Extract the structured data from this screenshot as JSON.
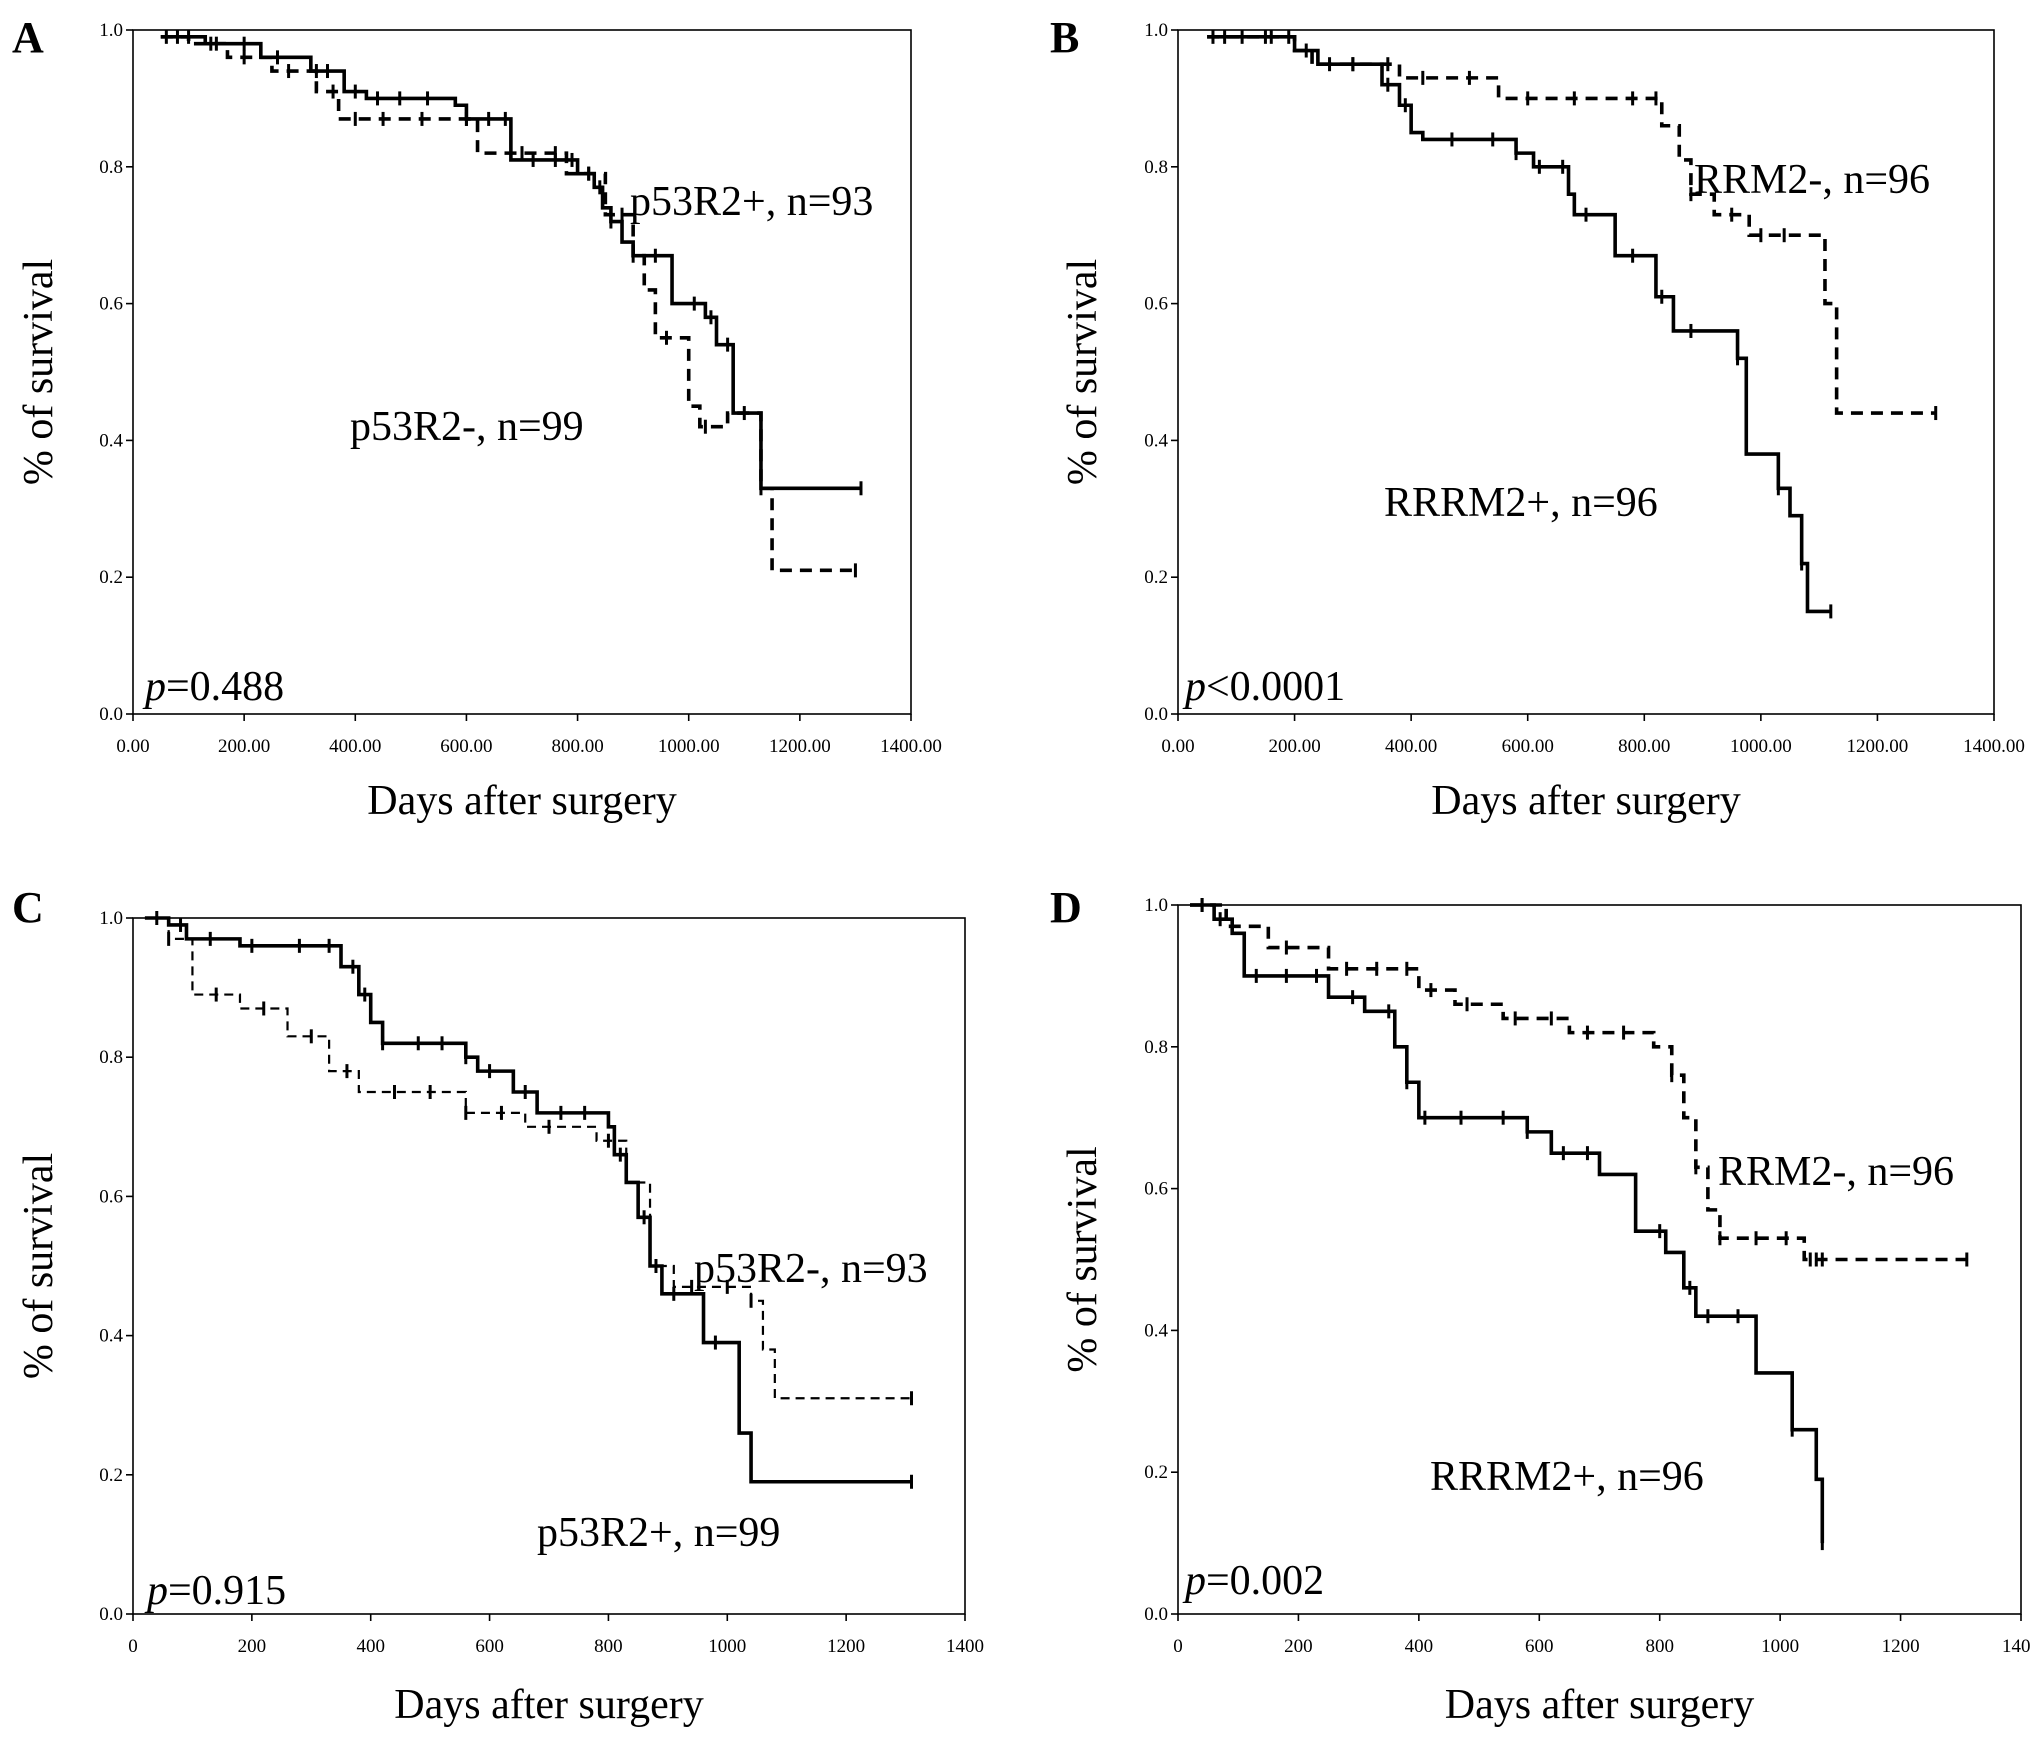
{
  "chart_data": [
    {
      "type": "line",
      "panel": "A",
      "xlabel": "Days after surgery",
      "ylabel": "% of survival",
      "xlim": [
        0,
        1400
      ],
      "ylim": [
        0,
        1.0
      ],
      "x_ticks": [
        0,
        200,
        400,
        600,
        800,
        1000,
        1200,
        1400
      ],
      "x_tick_labels": [
        "0.00",
        "200.00",
        "400.00",
        "600.00",
        "800.00",
        "1000.00",
        "1200.00",
        "1400.00"
      ],
      "y_ticks": [
        0,
        0.2,
        0.4,
        0.6,
        0.8,
        1.0
      ],
      "y_tick_labels": [
        "0.0",
        "0.2",
        "0.4",
        "0.6",
        "0.8",
        "1.0"
      ],
      "pvalue_label": "p",
      "pvalue_text": "=0.488",
      "annotations": [
        "p53R2+, n=93",
        "p53R2-, n=99"
      ],
      "series": [
        {
          "label": "p53R2+, n=93",
          "style": "solid",
          "steps": [
            [
              50,
              0.99
            ],
            [
              130,
              0.98
            ],
            [
              230,
              0.96
            ],
            [
              320,
              0.94
            ],
            [
              380,
              0.91
            ],
            [
              420,
              0.9
            ],
            [
              580,
              0.89
            ],
            [
              600,
              0.87
            ],
            [
              680,
              0.81
            ],
            [
              800,
              0.79
            ],
            [
              830,
              0.77
            ],
            [
              845,
              0.74
            ],
            [
              860,
              0.72
            ],
            [
              880,
              0.69
            ],
            [
              900,
              0.67
            ],
            [
              970,
              0.6
            ],
            [
              1030,
              0.58
            ],
            [
              1050,
              0.54
            ],
            [
              1080,
              0.44
            ],
            [
              1130,
              0.33
            ],
            [
              1310,
              0.33
            ]
          ],
          "censor_x": [
            60,
            100,
            150,
            200,
            260,
            330,
            350,
            400,
            440,
            480,
            530,
            600,
            640,
            670,
            720,
            760,
            790,
            820,
            840,
            860,
            900,
            940,
            1010,
            1040,
            1070,
            1130,
            1310
          ]
        },
        {
          "label": "p53R2-, n=99",
          "style": "dotted",
          "steps": [
            [
              50,
              0.99
            ],
            [
              100,
              0.98
            ],
            [
              170,
              0.96
            ],
            [
              250,
              0.94
            ],
            [
              330,
              0.91
            ],
            [
              370,
              0.87
            ],
            [
              620,
              0.82
            ],
            [
              780,
              0.79
            ],
            [
              850,
              0.73
            ],
            [
              900,
              0.67
            ],
            [
              920,
              0.62
            ],
            [
              940,
              0.55
            ],
            [
              1000,
              0.45
            ],
            [
              1020,
              0.42
            ],
            [
              1070,
              0.44
            ],
            [
              1130,
              0.33
            ],
            [
              1150,
              0.21
            ],
            [
              1300,
              0.21
            ]
          ],
          "censor_x": [
            80,
            140,
            200,
            280,
            360,
            400,
            450,
            520,
            600,
            700,
            760,
            820,
            880,
            960,
            1030,
            1100,
            1300
          ]
        }
      ]
    },
    {
      "type": "line",
      "panel": "B",
      "xlabel": "Days after surgery",
      "ylabel": "% of survival",
      "xlim": [
        0,
        1400
      ],
      "ylim": [
        0,
        1.0
      ],
      "x_ticks": [
        0,
        200,
        400,
        600,
        800,
        1000,
        1200,
        1400
      ],
      "x_tick_labels": [
        "0.00",
        "200.00",
        "400.00",
        "600.00",
        "800.00",
        "1000.00",
        "1200.00",
        "1400.00"
      ],
      "y_ticks": [
        0,
        0.2,
        0.4,
        0.6,
        0.8,
        1.0
      ],
      "y_tick_labels": [
        "0.0",
        "0.2",
        "0.4",
        "0.6",
        "0.8",
        "1.0"
      ],
      "pvalue_label": "p",
      "pvalue_text": "<0.0001",
      "annotations": [
        "RRM2-, n=96",
        "RRRM2+, n=96"
      ],
      "series": [
        {
          "label": "RRRM2+, n=96",
          "style": "solid",
          "steps": [
            [
              50,
              0.99
            ],
            [
              200,
              0.97
            ],
            [
              240,
              0.95
            ],
            [
              350,
              0.92
            ],
            [
              380,
              0.89
            ],
            [
              400,
              0.85
            ],
            [
              420,
              0.84
            ],
            [
              580,
              0.82
            ],
            [
              610,
              0.8
            ],
            [
              670,
              0.76
            ],
            [
              680,
              0.73
            ],
            [
              750,
              0.67
            ],
            [
              820,
              0.61
            ],
            [
              850,
              0.56
            ],
            [
              960,
              0.52
            ],
            [
              975,
              0.38
            ],
            [
              1030,
              0.33
            ],
            [
              1050,
              0.29
            ],
            [
              1070,
              0.22
            ],
            [
              1080,
              0.15
            ],
            [
              1120,
              0.15
            ]
          ],
          "censor_x": [
            60,
            110,
            150,
            190,
            260,
            300,
            360,
            390,
            470,
            540,
            580,
            620,
            660,
            700,
            780,
            830,
            880,
            960,
            1030,
            1070,
            1120
          ]
        },
        {
          "label": "RRM2-, n=96",
          "style": "dashed",
          "steps": [
            [
              50,
              0.99
            ],
            [
              200,
              0.97
            ],
            [
              230,
              0.95
            ],
            [
              380,
              0.93
            ],
            [
              550,
              0.9
            ],
            [
              830,
              0.86
            ],
            [
              860,
              0.81
            ],
            [
              880,
              0.76
            ],
            [
              920,
              0.73
            ],
            [
              980,
              0.7
            ],
            [
              1110,
              0.6
            ],
            [
              1130,
              0.44
            ],
            [
              1300,
              0.44
            ]
          ],
          "censor_x": [
            80,
            160,
            220,
            300,
            360,
            420,
            500,
            600,
            680,
            780,
            820,
            880,
            950,
            1000,
            1040,
            1300
          ]
        }
      ]
    },
    {
      "type": "line",
      "panel": "C",
      "xlabel": "Days after surgery",
      "ylabel": "% of survival",
      "xlim": [
        0,
        1400
      ],
      "ylim": [
        0,
        1.0
      ],
      "x_ticks": [
        0,
        200,
        400,
        600,
        800,
        1000,
        1200,
        1400
      ],
      "x_tick_labels": [
        "0",
        "200",
        "400",
        "600",
        "800",
        "1000",
        "1200",
        "1400"
      ],
      "y_ticks": [
        0,
        0.2,
        0.4,
        0.6,
        0.8,
        1.0
      ],
      "y_tick_labels": [
        "0.0",
        "0.2",
        "0.4",
        "0.6",
        "0.8",
        "1.0"
      ],
      "pvalue_label": "p",
      "pvalue_text": "=0.915",
      "annotations": [
        "p53R2-, n=93",
        "p53R2+, n=99"
      ],
      "series": [
        {
          "label": "p53R2+, n=99",
          "style": "solid",
          "steps": [
            [
              20,
              1.0
            ],
            [
              60,
              0.99
            ],
            [
              90,
              0.97
            ],
            [
              180,
              0.96
            ],
            [
              350,
              0.93
            ],
            [
              380,
              0.89
            ],
            [
              400,
              0.85
            ],
            [
              420,
              0.82
            ],
            [
              560,
              0.8
            ],
            [
              580,
              0.78
            ],
            [
              640,
              0.75
            ],
            [
              680,
              0.72
            ],
            [
              800,
              0.7
            ],
            [
              810,
              0.66
            ],
            [
              830,
              0.62
            ],
            [
              850,
              0.57
            ],
            [
              870,
              0.5
            ],
            [
              890,
              0.46
            ],
            [
              960,
              0.39
            ],
            [
              1020,
              0.26
            ],
            [
              1040,
              0.19
            ],
            [
              1310,
              0.19
            ]
          ],
          "censor_x": [
            40,
            80,
            130,
            200,
            280,
            330,
            370,
            390,
            420,
            480,
            520,
            560,
            600,
            660,
            720,
            760,
            820,
            860,
            910,
            980,
            1310
          ]
        },
        {
          "label": "p53R2-, n=93",
          "style": "dashed-thin",
          "steps": [
            [
              30,
              1.0
            ],
            [
              60,
              0.97
            ],
            [
              100,
              0.89
            ],
            [
              180,
              0.87
            ],
            [
              260,
              0.83
            ],
            [
              330,
              0.78
            ],
            [
              380,
              0.75
            ],
            [
              560,
              0.72
            ],
            [
              660,
              0.7
            ],
            [
              780,
              0.68
            ],
            [
              830,
              0.62
            ],
            [
              870,
              0.5
            ],
            [
              910,
              0.47
            ],
            [
              1040,
              0.45
            ],
            [
              1060,
              0.38
            ],
            [
              1080,
              0.31
            ],
            [
              1310,
              0.31
            ]
          ],
          "censor_x": [
            60,
            140,
            220,
            300,
            360,
            440,
            500,
            560,
            620,
            700,
            800,
            880,
            940,
            1000,
            1040,
            1310
          ]
        }
      ]
    },
    {
      "type": "line",
      "panel": "D",
      "xlabel": "Days after surgery",
      "ylabel": "% of survival",
      "xlim": [
        0,
        1400
      ],
      "ylim": [
        0,
        1.0
      ],
      "x_ticks": [
        0,
        200,
        400,
        600,
        800,
        1000,
        1200,
        1400
      ],
      "x_tick_labels": [
        "0",
        "200",
        "400",
        "600",
        "800",
        "1000",
        "1200",
        "1400"
      ],
      "y_ticks": [
        0,
        0.2,
        0.4,
        0.6,
        0.8,
        1.0
      ],
      "y_tick_labels": [
        "0.0",
        "0.2",
        "0.4",
        "0.6",
        "0.8",
        "1.0"
      ],
      "pvalue_label": "p",
      "pvalue_text": "=0.002",
      "annotations": [
        "RRM2-, n=96",
        "RRRM2+, n=96"
      ],
      "series": [
        {
          "label": "RRRM2+, n=96",
          "style": "solid",
          "steps": [
            [
              20,
              1.0
            ],
            [
              60,
              0.98
            ],
            [
              90,
              0.96
            ],
            [
              110,
              0.9
            ],
            [
              250,
              0.87
            ],
            [
              310,
              0.85
            ],
            [
              360,
              0.8
            ],
            [
              380,
              0.75
            ],
            [
              400,
              0.7
            ],
            [
              580,
              0.68
            ],
            [
              620,
              0.65
            ],
            [
              700,
              0.62
            ],
            [
              760,
              0.54
            ],
            [
              810,
              0.51
            ],
            [
              840,
              0.46
            ],
            [
              860,
              0.42
            ],
            [
              960,
              0.34
            ],
            [
              1020,
              0.26
            ],
            [
              1060,
              0.19
            ],
            [
              1070,
              0.1
            ]
          ],
          "censor_x": [
            40,
            70,
            130,
            180,
            230,
            290,
            350,
            380,
            410,
            470,
            540,
            580,
            640,
            680,
            800,
            850,
            880,
            930,
            1020,
            1070
          ]
        },
        {
          "label": "RRM2-, n=96",
          "style": "dashed",
          "steps": [
            [
              20,
              1.0
            ],
            [
              80,
              0.97
            ],
            [
              150,
              0.94
            ],
            [
              250,
              0.91
            ],
            [
              400,
              0.88
            ],
            [
              460,
              0.86
            ],
            [
              540,
              0.84
            ],
            [
              650,
              0.82
            ],
            [
              790,
              0.8
            ],
            [
              820,
              0.76
            ],
            [
              840,
              0.7
            ],
            [
              860,
              0.63
            ],
            [
              880,
              0.57
            ],
            [
              900,
              0.53
            ],
            [
              1040,
              0.5
            ],
            [
              1310,
              0.5
            ]
          ],
          "censor_x": [
            40,
            90,
            180,
            280,
            330,
            380,
            420,
            480,
            560,
            620,
            680,
            740,
            820,
            860,
            900,
            960,
            1010,
            1050,
            1060,
            1070,
            1310
          ]
        }
      ]
    }
  ]
}
